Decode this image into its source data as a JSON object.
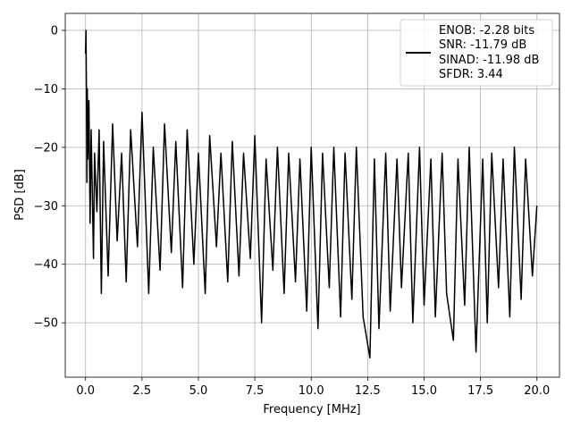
{
  "chart_data": {
    "type": "line",
    "title": "",
    "xlabel": "Frequency [MHz]",
    "ylabel": "PSD [dB]",
    "xlim": [
      -0.9,
      21.0
    ],
    "ylim": [
      -59.3,
      2.9
    ],
    "grid": true,
    "legend_position": "top-right",
    "x_ticks": [
      0.0,
      2.5,
      5.0,
      7.5,
      10.0,
      12.5,
      15.0,
      17.5,
      20.0
    ],
    "x_tick_labels": [
      "0.0",
      "2.5",
      "5.0",
      "7.5",
      "10.0",
      "12.5",
      "15.0",
      "17.5",
      "20.0"
    ],
    "y_ticks": [
      0,
      -10,
      -20,
      -30,
      -40,
      -50
    ],
    "y_tick_labels": [
      "0",
      "−10",
      "−20",
      "−30",
      "−40",
      "−50"
    ],
    "series": [
      {
        "name": "ENOB: -2.28 bits\nSNR: -11.79 dB\nSINAD: -11.98 dB\nSFDR: 3.44",
        "legend_lines": [
          "ENOB: -2.28 bits",
          "SNR: -11.79 dB",
          "SINAD: -11.98 dB",
          "SFDR: 3.44"
        ],
        "color": "#000000",
        "x": [
          0.0,
          0.02,
          0.04,
          0.06,
          0.08,
          0.1,
          0.15,
          0.2,
          0.25,
          0.3,
          0.35,
          0.4,
          0.5,
          0.6,
          0.7,
          0.8,
          1.0,
          1.2,
          1.4,
          1.6,
          1.8,
          2.0,
          2.3,
          2.5,
          2.8,
          3.0,
          3.3,
          3.5,
          3.8,
          4.0,
          4.3,
          4.5,
          4.8,
          5.0,
          5.3,
          5.5,
          5.8,
          6.0,
          6.3,
          6.5,
          6.8,
          7.0,
          7.3,
          7.5,
          7.8,
          8.0,
          8.3,
          8.5,
          8.8,
          9.0,
          9.3,
          9.5,
          9.8,
          10.0,
          10.3,
          10.5,
          10.8,
          11.0,
          11.3,
          11.5,
          11.8,
          12.0,
          12.3,
          12.6,
          12.8,
          13.0,
          13.3,
          13.5,
          13.8,
          14.0,
          14.3,
          14.5,
          14.8,
          15.0,
          15.3,
          15.5,
          15.8,
          16.0,
          16.3,
          16.5,
          16.8,
          17.0,
          17.3,
          17.6,
          17.8,
          18.0,
          18.3,
          18.5,
          18.8,
          19.0,
          19.3,
          19.5,
          19.8,
          20.0
        ],
        "values": [
          -4,
          0,
          -10,
          -26,
          -10,
          -22,
          -12,
          -33,
          -17,
          -28,
          -39,
          -21,
          -31,
          -17,
          -45,
          -19,
          -42,
          -16,
          -36,
          -21,
          -43,
          -17,
          -37,
          -14,
          -45,
          -20,
          -41,
          -16,
          -38,
          -19,
          -44,
          -17,
          -40,
          -21,
          -45,
          -18,
          -37,
          -21,
          -43,
          -19,
          -42,
          -21,
          -39,
          -18,
          -50,
          -22,
          -41,
          -20,
          -45,
          -21,
          -43,
          -22,
          -48,
          -20,
          -51,
          -21,
          -44,
          -20,
          -49,
          -21,
          -46,
          -20,
          -49,
          -56,
          -22,
          -51,
          -21,
          -48,
          -22,
          -44,
          -21,
          -50,
          -20,
          -47,
          -22,
          -49,
          -21,
          -45,
          -53,
          -22,
          -47,
          -20,
          -55,
          -22,
          -50,
          -21,
          -44,
          -22,
          -49,
          -20,
          -46,
          -22,
          -42,
          -30
        ]
      }
    ]
  }
}
